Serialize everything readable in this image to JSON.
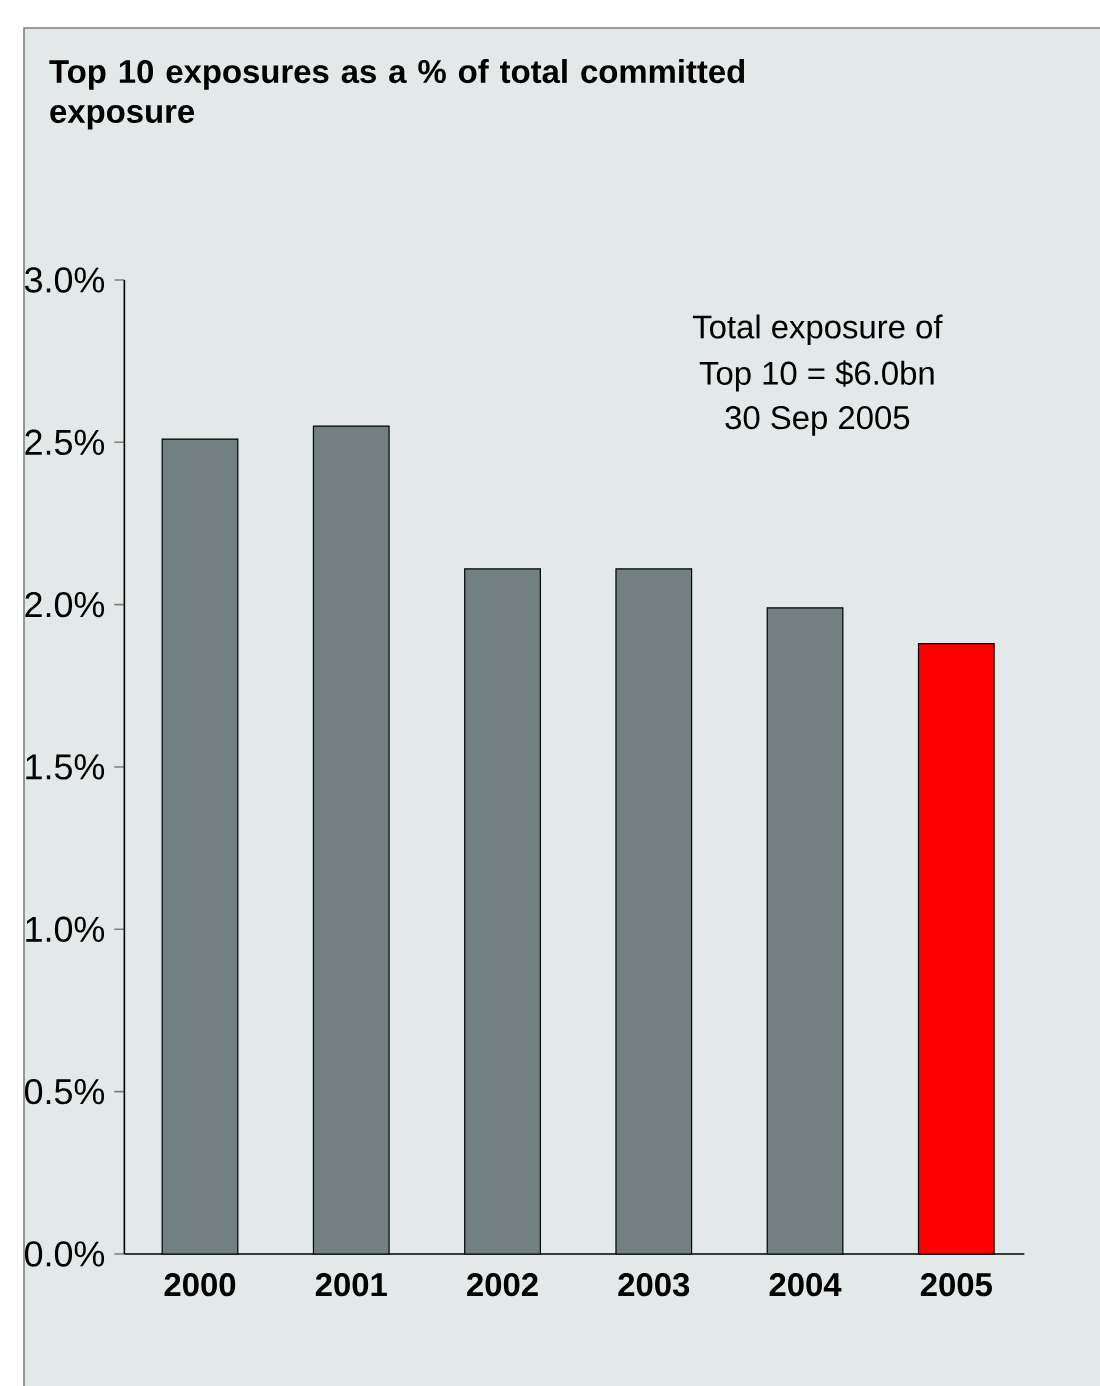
{
  "chart_data": {
    "type": "bar",
    "title": "Top 10 exposures as a % of total committed exposure",
    "categories": [
      "2000",
      "2001",
      "2002",
      "2003",
      "2004",
      "2005"
    ],
    "values": [
      2.51,
      2.55,
      2.11,
      2.11,
      1.99,
      1.88
    ],
    "colors": [
      "#738082",
      "#738082",
      "#738082",
      "#738082",
      "#738082",
      "#ff0000"
    ],
    "ylim": [
      0,
      3
    ],
    "yticks": [
      {
        "value": 0,
        "label": "0.0%"
      },
      {
        "value": 0.5,
        "label": "0.5%"
      },
      {
        "value": 1,
        "label": "1.0%"
      },
      {
        "value": 1.5,
        "label": "1.5%"
      },
      {
        "value": 2,
        "label": "2.0%"
      },
      {
        "value": 2.5,
        "label": "2.5%"
      },
      {
        "value": 3,
        "label": "3.0%"
      }
    ],
    "annotations": [
      "Total exposure of",
      "Top 10 = $6.0bn",
      "30 Sep 2005"
    ]
  }
}
